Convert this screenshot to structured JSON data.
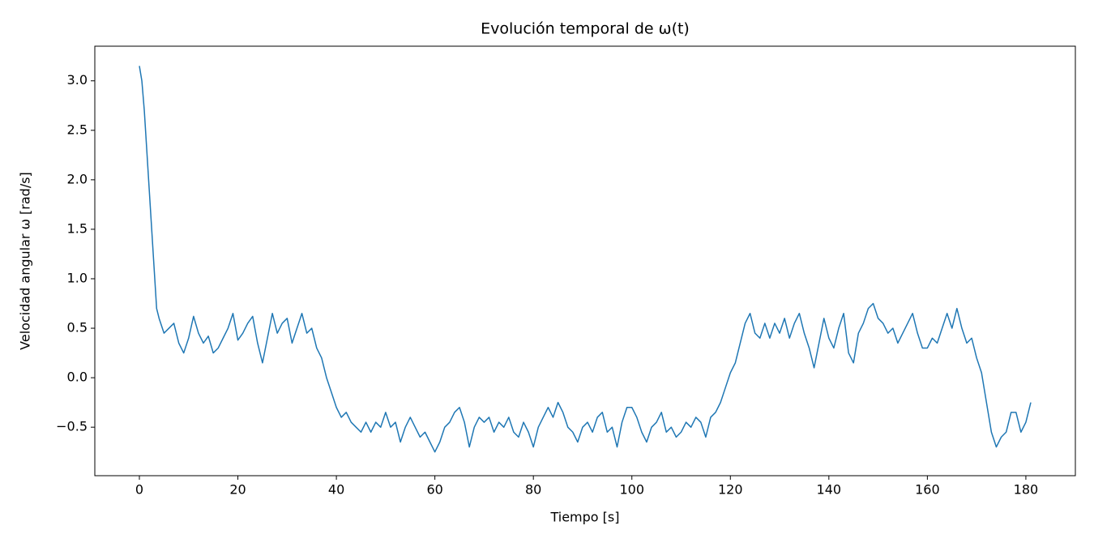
{
  "chart_data": {
    "type": "line",
    "title": "Evolución temporal de ω(t)",
    "xlabel": "Tiempo [s]",
    "ylabel": "Velocidad angular ω [rad/s]",
    "xlim": [
      -9.05,
      190.05
    ],
    "ylim": [
      -0.99,
      3.35
    ],
    "xticks": [
      0,
      20,
      40,
      60,
      80,
      100,
      120,
      140,
      160,
      180
    ],
    "yticks": [
      {
        "value": -0.5,
        "label": "−0.5"
      },
      {
        "value": 0,
        "label": "0.0"
      },
      0.5,
      {
        "value": 1,
        "label": "1.0"
      },
      1.5,
      {
        "value": 2,
        "label": "2.0"
      },
      2.5,
      {
        "value": 3,
        "label": "3.0"
      }
    ],
    "x": [
      0,
      0.5,
      1,
      1.5,
      2,
      2.5,
      3,
      3.5,
      4,
      5,
      6,
      7,
      8,
      9,
      10,
      11,
      12,
      13,
      14,
      15,
      16,
      17,
      18,
      19,
      20,
      21,
      22,
      23,
      24,
      25,
      26,
      27,
      28,
      29,
      30,
      31,
      32,
      33,
      34,
      35,
      36,
      37,
      38,
      39,
      40,
      41,
      42,
      43,
      44,
      45,
      46,
      47,
      48,
      49,
      50,
      51,
      52,
      53,
      54,
      55,
      56,
      57,
      58,
      59,
      60,
      61,
      62,
      63,
      64,
      65,
      66,
      67,
      68,
      69,
      70,
      71,
      72,
      73,
      74,
      75,
      76,
      77,
      78,
      79,
      80,
      81,
      82,
      83,
      84,
      85,
      86,
      87,
      88,
      89,
      90,
      91,
      92,
      93,
      94,
      95,
      96,
      97,
      98,
      99,
      100,
      101,
      102,
      103,
      104,
      105,
      106,
      107,
      108,
      109,
      110,
      111,
      112,
      113,
      114,
      115,
      116,
      117,
      118,
      119,
      120,
      121,
      122,
      123,
      124,
      125,
      126,
      127,
      128,
      129,
      130,
      131,
      132,
      133,
      134,
      135,
      136,
      137,
      138,
      139,
      140,
      141,
      142,
      143,
      144,
      145,
      146,
      147,
      148,
      149,
      150,
      151,
      152,
      153,
      154,
      155,
      156,
      157,
      158,
      159,
      160,
      161,
      162,
      163,
      164,
      165,
      166,
      167,
      168,
      169,
      170,
      171,
      172,
      173,
      174,
      175,
      176,
      177,
      178,
      179,
      180,
      181
    ],
    "series": [
      {
        "color": "#1f77b4",
        "values": [
          3.15,
          3.0,
          2.7,
          2.3,
          1.9,
          1.5,
          1.1,
          0.7,
          0.6,
          0.45,
          0.5,
          0.55,
          0.35,
          0.25,
          0.4,
          0.62,
          0.45,
          0.35,
          0.42,
          0.25,
          0.3,
          0.4,
          0.5,
          0.65,
          0.38,
          0.45,
          0.55,
          0.62,
          0.35,
          0.15,
          0.4,
          0.65,
          0.45,
          0.55,
          0.6,
          0.35,
          0.5,
          0.65,
          0.45,
          0.5,
          0.3,
          0.2,
          0.0,
          -0.15,
          -0.3,
          -0.4,
          -0.35,
          -0.45,
          -0.5,
          -0.55,
          -0.45,
          -0.55,
          -0.45,
          -0.5,
          -0.35,
          -0.5,
          -0.45,
          -0.65,
          -0.5,
          -0.4,
          -0.5,
          -0.6,
          -0.55,
          -0.65,
          -0.75,
          -0.65,
          -0.5,
          -0.45,
          -0.35,
          -0.3,
          -0.45,
          -0.7,
          -0.5,
          -0.4,
          -0.45,
          -0.4,
          -0.55,
          -0.45,
          -0.5,
          -0.4,
          -0.55,
          -0.6,
          -0.45,
          -0.55,
          -0.7,
          -0.5,
          -0.4,
          -0.3,
          -0.4,
          -0.25,
          -0.35,
          -0.5,
          -0.55,
          -0.65,
          -0.5,
          -0.45,
          -0.55,
          -0.4,
          -0.35,
          -0.55,
          -0.5,
          -0.7,
          -0.45,
          -0.3,
          -0.3,
          -0.4,
          -0.55,
          -0.65,
          -0.5,
          -0.45,
          -0.35,
          -0.55,
          -0.5,
          -0.6,
          -0.55,
          -0.45,
          -0.5,
          -0.4,
          -0.45,
          -0.6,
          -0.4,
          -0.35,
          -0.25,
          -0.1,
          0.05,
          0.15,
          0.35,
          0.55,
          0.65,
          0.45,
          0.4,
          0.55,
          0.4,
          0.55,
          0.45,
          0.6,
          0.4,
          0.55,
          0.65,
          0.45,
          0.3,
          0.1,
          0.35,
          0.6,
          0.4,
          0.3,
          0.5,
          0.65,
          0.25,
          0.15,
          0.45,
          0.55,
          0.7,
          0.75,
          0.6,
          0.55,
          0.45,
          0.5,
          0.35,
          0.45,
          0.55,
          0.65,
          0.45,
          0.3,
          0.3,
          0.4,
          0.35,
          0.5,
          0.65,
          0.5,
          0.7,
          0.5,
          0.35,
          0.4,
          0.2,
          0.05,
          -0.25,
          -0.55,
          -0.7,
          -0.6,
          -0.55,
          -0.35,
          -0.35,
          -0.55,
          -0.45,
          -0.25
        ]
      }
    ]
  }
}
